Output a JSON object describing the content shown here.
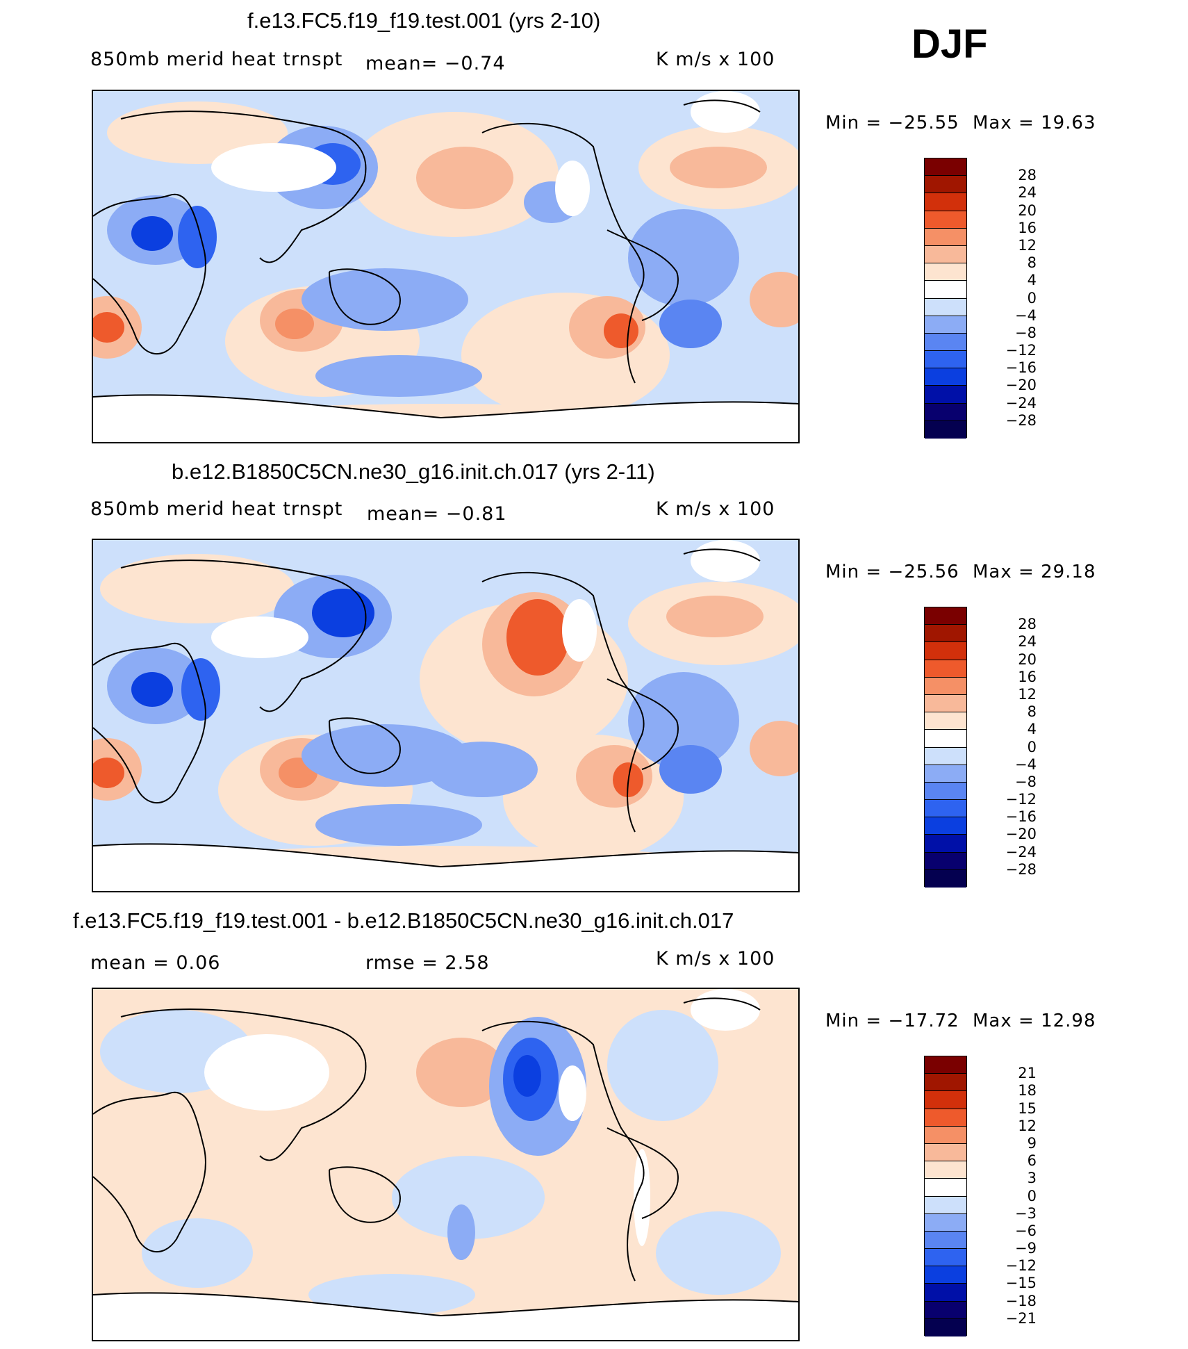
{
  "season": "DJF",
  "colors": {
    "diverging_13": [
      "#08006e",
      "#0010a8",
      "#0b3fe0",
      "#2e63f0",
      "#5a85f2",
      "#8cacf5",
      "#cde0fb",
      "#fde4d0",
      "#f8b99a",
      "#f59066",
      "#ee5a2c",
      "#d2300b",
      "#a01600",
      "#7a0000"
    ],
    "coast": "#000000"
  },
  "panels": [
    {
      "title": "f.e13.FC5.f19_f19.test.001 (yrs 2-10)",
      "variable": "850mb merid heat trnspt",
      "stat1": "mean=   −0.74",
      "units": "K m/s x 100",
      "min_label": "Min = −25.55",
      "max_label": "Max =  19.63",
      "colorbar_ticks": [
        "28",
        "24",
        "20",
        "16",
        "12",
        "8",
        "4",
        "0",
        "−4",
        "−8",
        "−12",
        "−16",
        "−20",
        "−24",
        "−28"
      ]
    },
    {
      "title": "b.e12.B1850C5CN.ne30_g16.init.ch.017 (yrs 2-11)",
      "variable": "850mb merid heat trnspt",
      "stat1": "mean=   −0.81",
      "units": "K m/s x 100",
      "min_label": "Min = −25.56",
      "max_label": "Max =  29.18",
      "colorbar_ticks": [
        "28",
        "24",
        "20",
        "16",
        "12",
        "8",
        "4",
        "0",
        "−4",
        "−8",
        "−12",
        "−16",
        "−20",
        "−24",
        "−28"
      ]
    },
    {
      "title": "f.e13.FC5.f19_f19.test.001 - b.e12.B1850C5CN.ne30_g16.init.ch.017",
      "variable": "mean =    0.06",
      "stat1": "rmse =    2.58",
      "units": "K m/s x 100",
      "min_label": "Min = −17.72",
      "max_label": "Max =  12.98",
      "colorbar_ticks": [
        "21",
        "18",
        "15",
        "12",
        "9",
        "6",
        "3",
        "0",
        "−3",
        "−6",
        "−9",
        "−12",
        "−15",
        "−18",
        "−21"
      ]
    }
  ]
}
